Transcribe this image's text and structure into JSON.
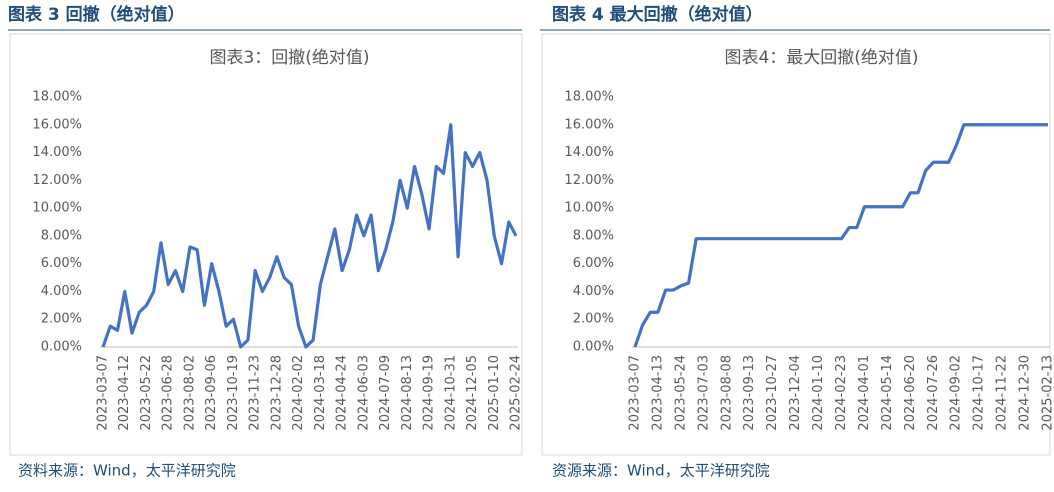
{
  "panels": [
    {
      "heading": "图表 3 回撤（绝对值）",
      "source": "资料来源：Wind，太平洋研究院"
    },
    {
      "heading": "图表 4 最大回撤（绝对值）",
      "source": "资源来源：Wind，太平洋研究院"
    }
  ],
  "chart_data": [
    {
      "type": "line",
      "title": "图表3：回撤(绝对值)",
      "color": "#4472c4",
      "grid": false,
      "categories": [
        "2023-03-07",
        null,
        null,
        "2023-04-12",
        null,
        null,
        "2023-05-22",
        null,
        null,
        "2023-06-28",
        null,
        null,
        "2023-08-02",
        null,
        null,
        "2023-09-06",
        null,
        null,
        "2023-10-19",
        null,
        null,
        "2023-11-23",
        null,
        null,
        "2023-12-28",
        null,
        null,
        "2024-02-02",
        null,
        null,
        "2024-03-18",
        null,
        null,
        "2024-04-24",
        null,
        null,
        "2024-06-03",
        null,
        null,
        "2024-07-09",
        null,
        null,
        "2024-08-13",
        null,
        null,
        "2024-09-19",
        null,
        null,
        "2024-10-31",
        null,
        null,
        "2024-12-05",
        null,
        null,
        "2025-01-10",
        null,
        null,
        "2025-02-24"
      ],
      "values": [
        0,
        1.5,
        1.2,
        4.0,
        1.0,
        2.5,
        3.0,
        4.0,
        7.5,
        4.5,
        5.5,
        4.0,
        7.2,
        7.0,
        3.0,
        6.0,
        4.0,
        1.5,
        2.0,
        0.0,
        0.5,
        5.5,
        4.0,
        5.0,
        6.5,
        5.0,
        4.5,
        1.5,
        0.0,
        0.5,
        4.5,
        6.5,
        8.5,
        5.5,
        7.0,
        9.5,
        8.0,
        9.5,
        5.5,
        7.0,
        9.0,
        12.0,
        10.0,
        13.0,
        11.0,
        8.5,
        13.0,
        12.5,
        16.0,
        6.5,
        14.0,
        13.0,
        14.0,
        12.0,
        8.0,
        6.0,
        9.0,
        8.0
      ],
      "ylim": [
        0,
        18
      ],
      "yticks": [
        {
          "value": 0,
          "label": "0.00%"
        },
        {
          "value": 2,
          "label": "2.00%"
        },
        {
          "value": 4,
          "label": "4.00%"
        },
        {
          "value": 6,
          "label": "6.00%"
        },
        {
          "value": 8,
          "label": "8.00%"
        },
        {
          "value": 10,
          "label": "10.00%"
        },
        {
          "value": 12,
          "label": "12.00%"
        },
        {
          "value": 14,
          "label": "14.00%"
        },
        {
          "value": 16,
          "label": "16.00%"
        },
        {
          "value": 18,
          "label": "18.00%"
        }
      ]
    },
    {
      "type": "line",
      "title": "图表4：最大回撤(绝对值)",
      "color": "#4472c4",
      "grid": false,
      "categories": [
        "2023-03-07",
        null,
        null,
        "2023-04-13",
        null,
        null,
        "2023-05-24",
        null,
        null,
        "2023-07-03",
        null,
        null,
        "2023-08-08",
        null,
        null,
        "2023-09-13",
        null,
        null,
        "2023-10-27",
        null,
        null,
        "2023-12-04",
        null,
        null,
        "2024-01-10",
        null,
        null,
        "2024-02-23",
        null,
        null,
        "2024-04-01",
        null,
        null,
        "2024-05-14",
        null,
        null,
        "2024-06-20",
        null,
        null,
        "2024-07-26",
        null,
        null,
        "2024-09-02",
        null,
        null,
        "2024-10-17",
        null,
        null,
        "2024-11-22",
        null,
        null,
        "2024-12-30",
        null,
        null,
        "2025-02-13"
      ],
      "values": [
        0,
        1.6,
        2.5,
        2.5,
        4.1,
        4.1,
        4.4,
        4.6,
        7.8,
        7.8,
        7.8,
        7.8,
        7.8,
        7.8,
        7.8,
        7.8,
        7.8,
        7.8,
        7.8,
        7.8,
        7.8,
        7.8,
        7.8,
        7.8,
        7.8,
        7.8,
        7.8,
        7.8,
        8.6,
        8.6,
        10.1,
        10.1,
        10.1,
        10.1,
        10.1,
        10.1,
        11.1,
        11.1,
        12.7,
        13.3,
        13.3,
        13.3,
        14.5,
        16.0,
        16.0,
        16.0,
        16.0,
        16.0,
        16.0,
        16.0,
        16.0,
        16.0,
        16.0,
        16.0,
        16.0
      ],
      "ylim": [
        0,
        18
      ],
      "yticks": [
        {
          "value": 0,
          "label": "0.00%"
        },
        {
          "value": 2,
          "label": "2.00%"
        },
        {
          "value": 4,
          "label": "4.00%"
        },
        {
          "value": 6,
          "label": "6.00%"
        },
        {
          "value": 8,
          "label": "8.00%"
        },
        {
          "value": 10,
          "label": "10.00%"
        },
        {
          "value": 12,
          "label": "12.00%"
        },
        {
          "value": 14,
          "label": "14.00%"
        },
        {
          "value": 16,
          "label": "16.00%"
        },
        {
          "value": 18,
          "label": "18.00%"
        }
      ]
    }
  ]
}
